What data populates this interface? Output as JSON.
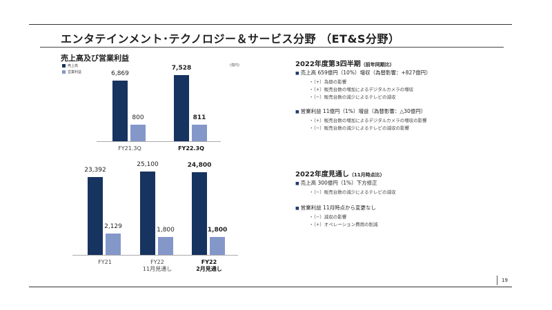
{
  "title": "エンタテインメント･テクノロジー＆サービス分野 （ET&S分野）",
  "subtitle": "売上高及び営業利益",
  "unit": "(億円)",
  "colors": {
    "sales": "#17335f",
    "op": "#8497c9"
  },
  "chart_data": [
    {
      "type": "bar",
      "legend": [
        "売上高",
        "営業利益"
      ],
      "categories": [
        "FY21.3Q",
        "FY22.3Q"
      ],
      "series": [
        {
          "name": "売上高",
          "values": [
            6869,
            7528
          ],
          "labels": [
            "6,869",
            "7,528"
          ]
        },
        {
          "name": "営業利益",
          "values": [
            800,
            811
          ],
          "labels": [
            "800",
            "811"
          ]
        }
      ]
    },
    {
      "type": "bar",
      "categories": [
        "FY21",
        "FY22\n11月見通し",
        "FY22\n2月見通し"
      ],
      "series": [
        {
          "name": "売上高",
          "values": [
            23392,
            25100,
            24800
          ],
          "labels": [
            "23,392",
            "25,100",
            "24,800"
          ]
        },
        {
          "name": "営業利益",
          "values": [
            2129,
            1800,
            1800
          ],
          "labels": [
            "2,129",
            "1,800",
            "1,800"
          ]
        }
      ]
    }
  ],
  "right": {
    "q3_heading": "2022年度第3四半期",
    "q3_note": "（前年同期比）",
    "q3_sales": "売上高 659億円（10%）増収（為替影響：+827億円）",
    "q3_sales_items": [
      "・（+）為替の影響",
      "・（+）販売台数の増加によるデジタルカメラの増収",
      "・（−）販売台数の減少によるテレビの減収"
    ],
    "q3_op": "営業利益  11億円（1%）増益（為替影響：△30億円）",
    "q3_op_items": [
      "・（+）販売台数の増加によるデジタルカメラの増収の影響",
      "・（−）販売台数の減少によるテレビの減収の影響"
    ],
    "fy_heading": "2022年度見通し",
    "fy_note": "（11月時点比）",
    "fy_sales": "売上高  300億円（1%）下方修正",
    "fy_sales_items": [
      "・（−）販売台数の減少によるテレビの減収"
    ],
    "fy_op": "営業利益   11月時点から変更なし",
    "fy_op_items": [
      "・（−）減収の影響",
      "・（+）オペレーション費用の削減"
    ]
  },
  "page": "19"
}
